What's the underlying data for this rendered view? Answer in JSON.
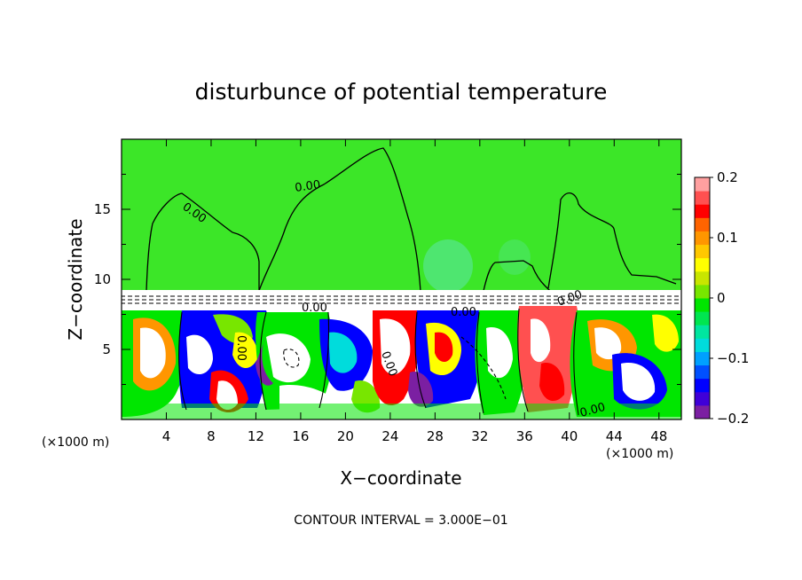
{
  "chart_data": {
    "type": "heatmap",
    "title": "disturbunce of potential temperature",
    "xlabel": "X−coordinate",
    "ylabel": "Z−coordinate",
    "x_unit": "(×1000 m)",
    "x_ticks": [
      4,
      8,
      12,
      16,
      20,
      24,
      28,
      32,
      36,
      40,
      44,
      48
    ],
    "x_range": [
      0,
      50
    ],
    "y_ticks": [
      5,
      10,
      15
    ],
    "y_range": [
      0,
      20
    ],
    "colorbar": {
      "range": [
        -0.2,
        0.2
      ],
      "ticks": [
        "0.2",
        "0.1",
        "0",
        "−0.1",
        "−0.2"
      ],
      "tick_values": [
        0.2,
        0.1,
        0,
        -0.1,
        -0.2
      ],
      "colors": [
        "#7b1fa2",
        "#3f00d8",
        "#0000ff",
        "#0050ff",
        "#00a0ff",
        "#00dcdc",
        "#00e6a0",
        "#00e650",
        "#00e600",
        "#78e600",
        "#c8e600",
        "#ffff00",
        "#ffc800",
        "#ff9600",
        "#ff6400",
        "#ff0000",
        "#ff5050",
        "#ffa0a0"
      ]
    },
    "contour_interval_text": "CONTOUR INTERVAL = 3.000E−01",
    "contour_labels": [
      "0.00",
      "0.00",
      "0.00",
      "0.00",
      "0.00",
      "0.00",
      "0.00",
      "0.00"
    ]
  }
}
